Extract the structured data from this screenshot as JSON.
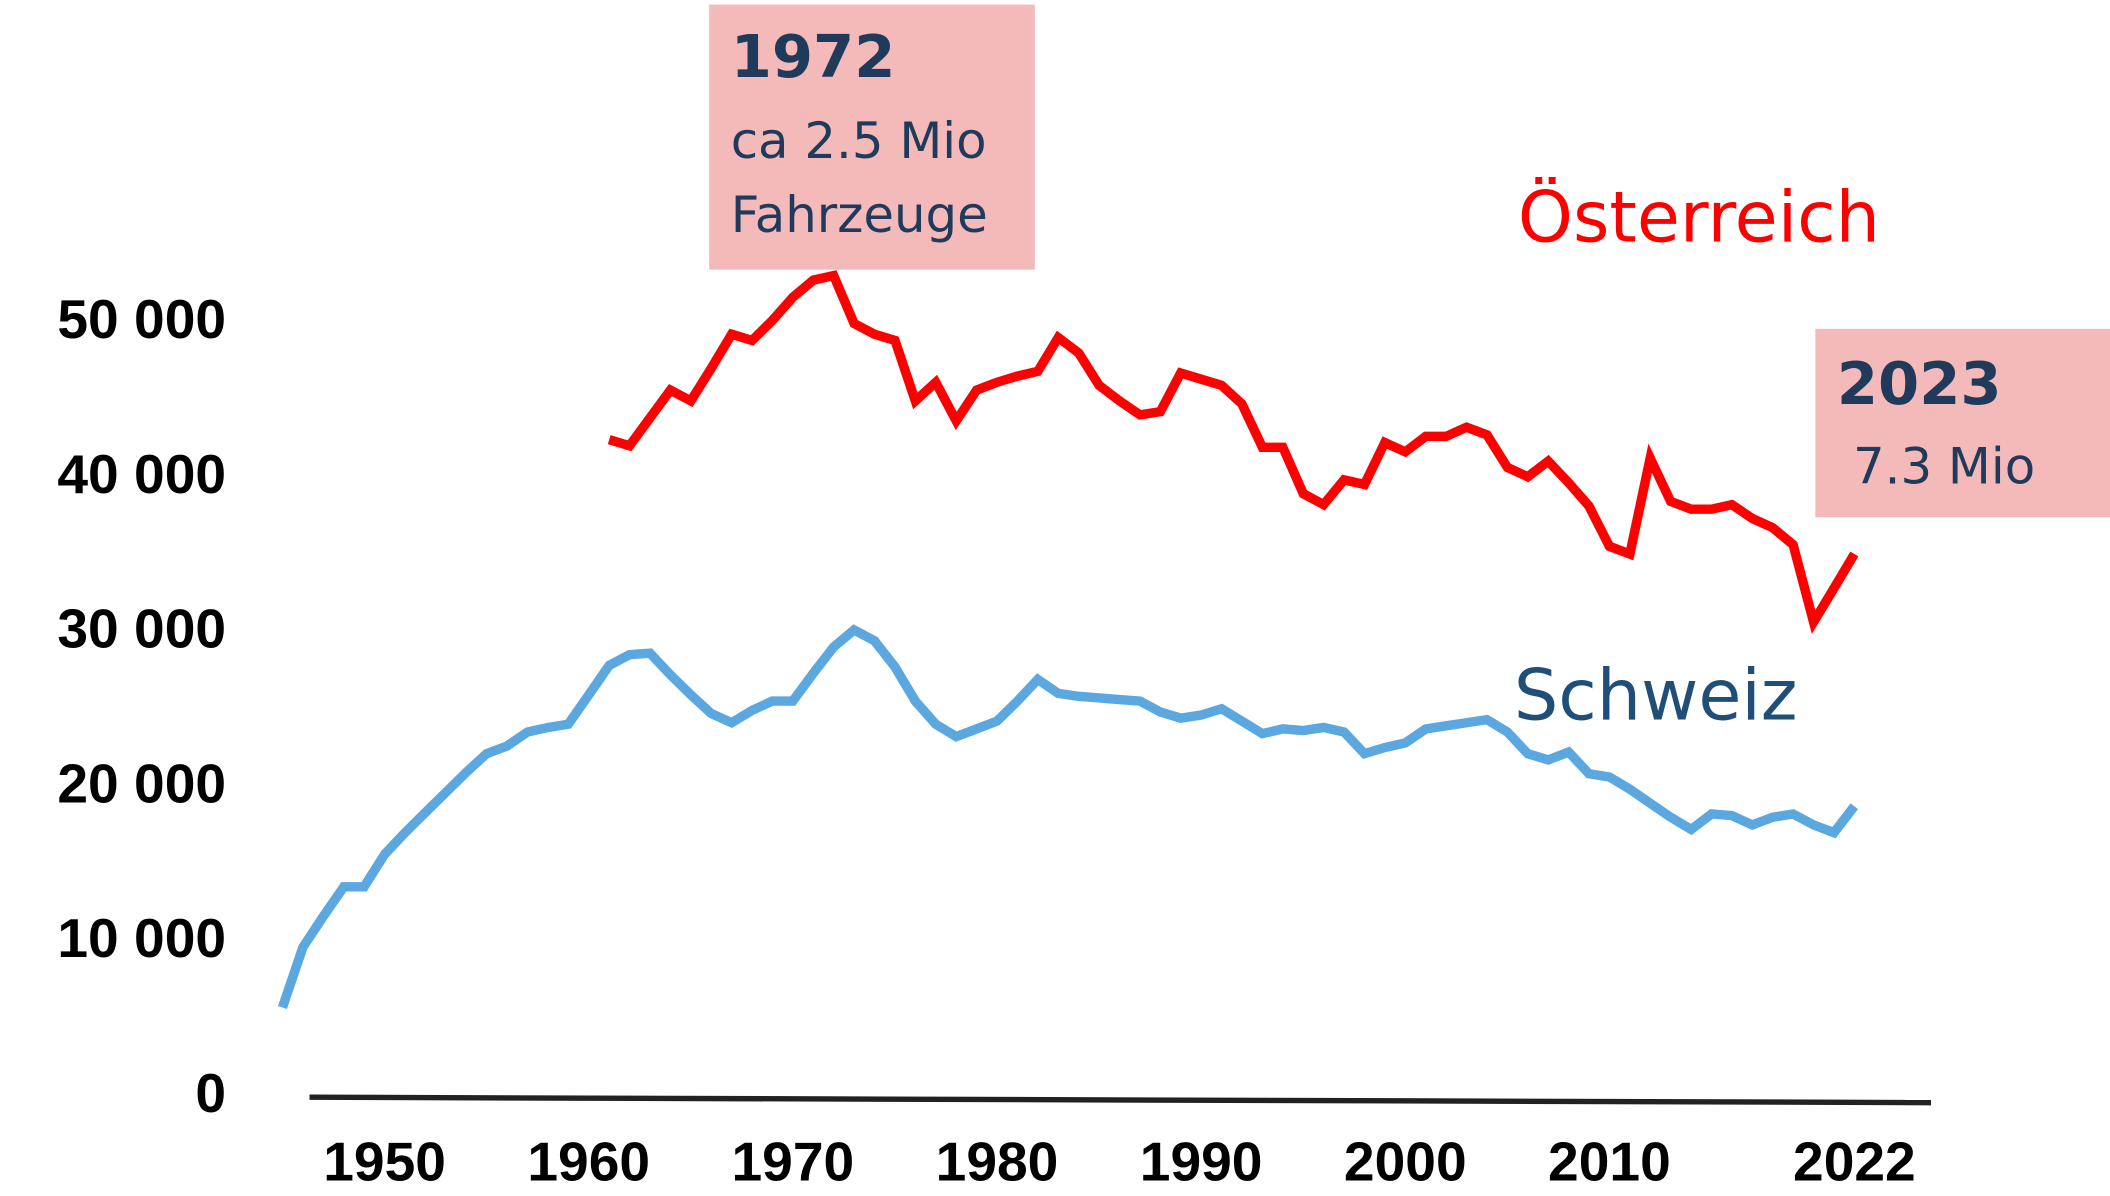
{
  "chart_data": {
    "type": "line",
    "x": [
      1945,
      1946,
      1947,
      1948,
      1949,
      1950,
      1951,
      1952,
      1953,
      1954,
      1955,
      1956,
      1957,
      1958,
      1959,
      1960,
      1961,
      1962,
      1963,
      1964,
      1965,
      1966,
      1967,
      1968,
      1969,
      1970,
      1971,
      1972,
      1973,
      1974,
      1975,
      1976,
      1977,
      1978,
      1979,
      1980,
      1981,
      1982,
      1983,
      1984,
      1985,
      1986,
      1987,
      1988,
      1989,
      1990,
      1991,
      1992,
      1993,
      1994,
      1995,
      1996,
      1997,
      1998,
      1999,
      2000,
      2001,
      2002,
      2003,
      2004,
      2005,
      2006,
      2007,
      2008,
      2009,
      2010,
      2011,
      2012,
      2013,
      2014,
      2015,
      2016,
      2017,
      2018,
      2019,
      2020,
      2021,
      2022
    ],
    "series": [
      {
        "name": "Österreich",
        "color": "#ff0000",
        "values": [
          null,
          null,
          null,
          null,
          null,
          null,
          null,
          null,
          null,
          null,
          null,
          null,
          null,
          null,
          null,
          null,
          42500,
          42100,
          43900,
          45700,
          45000,
          47100,
          49300,
          48900,
          50200,
          51700,
          52800,
          53100,
          50000,
          49300,
          48900,
          45000,
          46200,
          43700,
          45700,
          46200,
          46600,
          46900,
          49100,
          48100,
          46000,
          45000,
          44100,
          44300,
          46800,
          46400,
          46000,
          44800,
          42000,
          42000,
          39000,
          38300,
          39900,
          39600,
          42300,
          41700,
          42700,
          42700,
          43300,
          42800,
          40700,
          40100,
          41100,
          39700,
          38200,
          35600,
          35100,
          41300,
          38500,
          38000,
          38000,
          38300,
          37400,
          36800,
          35700,
          30700,
          32900,
          35100
        ]
      },
      {
        "name": "Schweiz",
        "color": "#5ba7e0",
        "values": [
          5800,
          9700,
          11700,
          13600,
          13600,
          15700,
          17100,
          18400,
          19700,
          21000,
          22200,
          22700,
          23600,
          23900,
          24100,
          26000,
          27900,
          28600,
          28700,
          27300,
          26000,
          24800,
          24200,
          25000,
          25600,
          25600,
          27400,
          29100,
          30200,
          29500,
          27800,
          25600,
          24100,
          23300,
          23800,
          24300,
          25600,
          27000,
          26100,
          25900,
          25800,
          25700,
          25600,
          24900,
          24500,
          24700,
          25100,
          24300,
          23500,
          23800,
          23700,
          23900,
          23600,
          22200,
          22600,
          22900,
          23800,
          24000,
          24200,
          24400,
          23600,
          22200,
          21800,
          22300,
          20900,
          20700,
          19900,
          19000,
          18100,
          17300,
          18300,
          18200,
          17600,
          18100,
          18300,
          17600,
          17100,
          18800
        ]
      }
    ],
    "xlim": [
      1940,
      2030
    ],
    "xticks": [
      1950,
      1960,
      1970,
      1980,
      1990,
      2000,
      2010,
      2022
    ],
    "ylim": [
      0,
      70000
    ],
    "yticks": [
      0,
      {
        "value": 10000,
        "label": "10 000"
      },
      {
        "value": 20000,
        "label": "20 000"
      },
      {
        "value": 30000,
        "label": "30 000"
      },
      {
        "value": 40000,
        "label": "40 000"
      },
      {
        "value": 50000,
        "label": "50 000"
      }
    ],
    "grid": false,
    "annotations": [
      {
        "year": "1972",
        "lines": [
          "ca 2.5 Mio",
          "Fahrzeuge"
        ]
      },
      {
        "year": "2023",
        "lines": [
          "7.3 Mio"
        ]
      }
    ]
  }
}
